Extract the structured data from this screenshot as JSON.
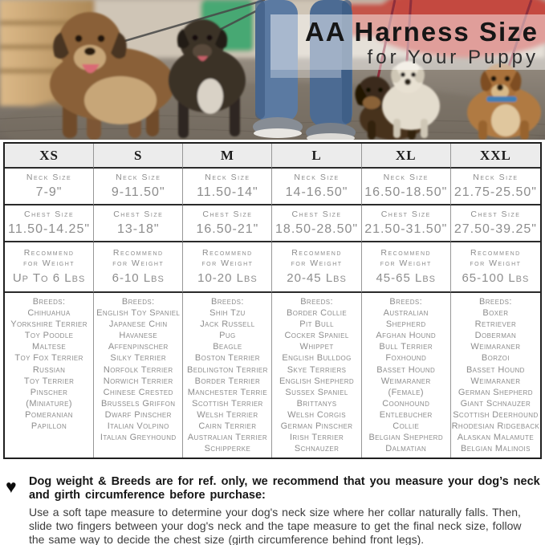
{
  "photo": {
    "title": "AA Harness Size",
    "subtitle": "for Your Puppy"
  },
  "icons": {
    "heart": "♥"
  },
  "colors": {
    "header_bg": "#ececec",
    "table_text_gray": "#8d8d8d",
    "row_border_dark": "#2b2b2b",
    "column_border_gray": "#979797",
    "overlay_white": "rgba(255,255,255,0.47)"
  },
  "table": {
    "labels": {
      "neck": "Neck Size",
      "chest": "Chest Size",
      "weight_line1": "Recommend",
      "weight_line2": "for Weight",
      "breeds": "Breeds:"
    },
    "columns": [
      {
        "size": "XS",
        "neck": "7-9\"",
        "chest": "11.50-14.25\"",
        "weight": "Up To 6 Lbs",
        "breeds": [
          "Chihuahua",
          "Yorkshire Terrier",
          "Toy Poodle",
          "Maltese",
          "Toy Fox Terrier",
          "Russian",
          "Toy Terrier",
          "Pinscher",
          "(Miniature)",
          "Pomeranian",
          "Papillon"
        ]
      },
      {
        "size": "S",
        "neck": "9-11.50\"",
        "chest": "13-18\"",
        "weight": "6-10 Lbs",
        "breeds": [
          "English Toy Spaniel",
          "Japanese Chin",
          "Havanese",
          "Affenpinscher",
          "Silky Terrier",
          "Norfolk Terrier",
          "Norwich Terrier",
          "Chinese Crested",
          "Brussels Griffon",
          "Dwarf Pinscher",
          "Italian Volpino",
          "Italian Greyhound"
        ]
      },
      {
        "size": "M",
        "neck": "11.50-14\"",
        "chest": "16.50-21\"",
        "weight": "10-20 Lbs",
        "breeds": [
          "Shih Tzu",
          "Jack Russell",
          "Pug",
          "Beagle",
          "Boston Terrier",
          "Bedlington Terrier",
          "Border Terrier",
          "Manchester Terrie",
          "Scottish Terrier",
          "Welsh Terrier",
          "Cairn Terrier",
          "Australian Terrier",
          "Schipperke"
        ]
      },
      {
        "size": "L",
        "neck": "14-16.50\"",
        "chest": "18.50-28.50\"",
        "weight": "20-45 Lbs",
        "breeds": [
          "Border Collie",
          "Pit Bull",
          "Cocker Spaniel",
          "Whippet",
          "English Bulldog",
          "Skye Terriers",
          "English Shepherd",
          "Sussex Spaniel",
          "Brittanys",
          "Welsh Corgis",
          "German Pinscher",
          "Irish Terrier",
          "Schnauzer"
        ]
      },
      {
        "size": "XL",
        "neck": "16.50-18.50\"",
        "chest": "21.50-31.50\"",
        "weight": "45-65 Lbs",
        "breeds": [
          "Australian",
          "Shepherd",
          "Afghan Hound",
          "Bull Terrier",
          "Foxhound",
          "Basset Hound",
          "Weimaraner",
          "(Female)",
          "Coonhound",
          "Entlebucher",
          "Collie",
          "Belgian Shepherd",
          "Dalmatian"
        ]
      },
      {
        "size": "XXL",
        "neck": "21.75-25.50\"",
        "chest": "27.50-39.25\"",
        "weight": "65-100 Lbs",
        "breeds": [
          "Boxer",
          "Retriever",
          "Doberman",
          "Weimaraner",
          "Borzoi",
          "Basset Hound",
          "Weimaraner",
          "German Shepherd",
          "Giant Schnauzer",
          "Scottish Deerhound",
          "Rhodesian Ridgeback",
          "Alaskan Malamute",
          "Belgian Malinois"
        ]
      }
    ]
  },
  "note": {
    "bold": "Dog weight & Breeds are for ref. only, we recommend that you measure your dog’s neck and girth circumference before purchase:",
    "body": "Use a soft tape measure to determine your dog's neck size where her collar naturally falls. Then, slide two fingers between your dog's neck and the tape measure to get the final neck size, follow the same way to decide the chest size (girth circumference behind front legs)."
  }
}
